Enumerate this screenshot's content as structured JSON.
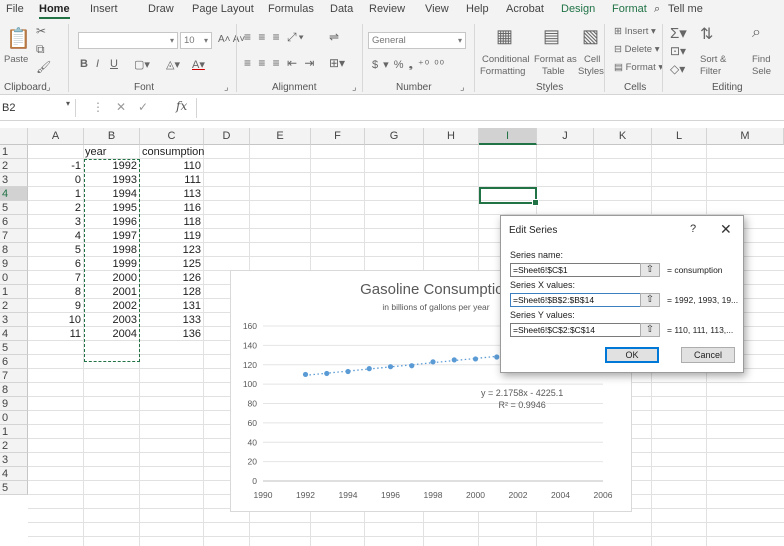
{
  "tabs": [
    "File",
    "Home",
    "Insert",
    "Draw",
    "Page Layout",
    "Formulas",
    "Data",
    "Review",
    "View",
    "Help",
    "Acrobat",
    "Design",
    "Format",
    "Tell me"
  ],
  "ribbon": {
    "groups": [
      "Clipboard",
      "Font",
      "Alignment",
      "Number",
      "Styles",
      "Cells",
      "Editing"
    ],
    "paste_label": "Paste",
    "font_size": "10",
    "number_format": "General",
    "conditional_formatting": [
      "Conditional",
      "Formatting"
    ],
    "format_as_table": [
      "Format as",
      "Table"
    ],
    "cell_styles": [
      "Cell",
      "Styles"
    ],
    "insert": "Insert",
    "delete": "Delete",
    "format": "Format",
    "sort_filter": [
      "Sort &",
      "Filter"
    ],
    "find_select": [
      "Find",
      "Sele"
    ]
  },
  "formula_bar": {
    "name_box": "B2",
    "fx": "fx",
    "content": ""
  },
  "columns": [
    "A",
    "B",
    "C",
    "D",
    "E",
    "F",
    "G",
    "H",
    "I",
    "J",
    "K",
    "L",
    "M"
  ],
  "rows": [
    "1",
    "2",
    "3",
    "4",
    "5",
    "6",
    "7",
    "8",
    "9",
    "0",
    "1",
    "2",
    "3",
    "4",
    "5",
    "6",
    "7",
    "8",
    "9",
    "0",
    "1",
    "2",
    "3",
    "4",
    "5"
  ],
  "sheet": {
    "headers": [
      "year",
      "consumption"
    ],
    "col_a": [
      "-1",
      "0",
      "1",
      "2",
      "3",
      "4",
      "5",
      "6",
      "7",
      "8",
      "9",
      "10",
      "11"
    ],
    "col_b": [
      "1992",
      "1993",
      "1994",
      "1995",
      "1996",
      "1997",
      "1998",
      "1999",
      "2000",
      "2001",
      "2002",
      "2003",
      "2004"
    ],
    "col_c": [
      "110",
      "111",
      "113",
      "116",
      "118",
      "119",
      "123",
      "125",
      "126",
      "128",
      "131",
      "133",
      "136"
    ]
  },
  "chart_data": {
    "type": "scatter",
    "title": "Gasoline Consumption",
    "subtitle": "in billions of gallons per year",
    "x": [
      1992,
      1993,
      1994,
      1995,
      1996,
      1997,
      1998,
      1999,
      2000,
      2001,
      2002,
      2003,
      2004
    ],
    "y": [
      110,
      111,
      113,
      116,
      118,
      119,
      123,
      125,
      126,
      128,
      131,
      133,
      136
    ],
    "xlim": [
      1990,
      2006
    ],
    "ylim": [
      0,
      160
    ],
    "x_ticks": [
      "1990",
      "1992",
      "1994",
      "1996",
      "1998",
      "2000",
      "2002",
      "2004",
      "2006"
    ],
    "y_ticks": [
      "0",
      "20",
      "40",
      "60",
      "80",
      "100",
      "120",
      "140",
      "160"
    ],
    "trendline": {
      "slope": 2.1758,
      "intercept": -4225.1,
      "style": "dotted",
      "equation": "y = 2.1758x - 4225.1",
      "r2": "R² = 0.9946"
    },
    "marker_color": "#5b9bd5",
    "grid": true
  },
  "dialog": {
    "title": "Edit Series",
    "help": "?",
    "close": "✕",
    "series_name_label": "Series name:",
    "series_name_value": "=Sheet6!$C$1",
    "series_name_result": "= consumption",
    "x_values_label": "Series X values:",
    "x_values_value": "=Sheet6!$B$2:$B$14",
    "x_values_result": "= 1992, 1993, 19...",
    "y_values_label": "Series Y values:",
    "y_values_value": "=Sheet6!$C$2:$C$14",
    "y_values_result": "= 110, 111, 113,...",
    "ok": "OK",
    "cancel": "Cancel",
    "collapse_icon": "⇧"
  },
  "colors": {
    "excel_green": "#217346",
    "ribbon_bg": "#f3f3f3",
    "marker": "#5b9bd5"
  }
}
